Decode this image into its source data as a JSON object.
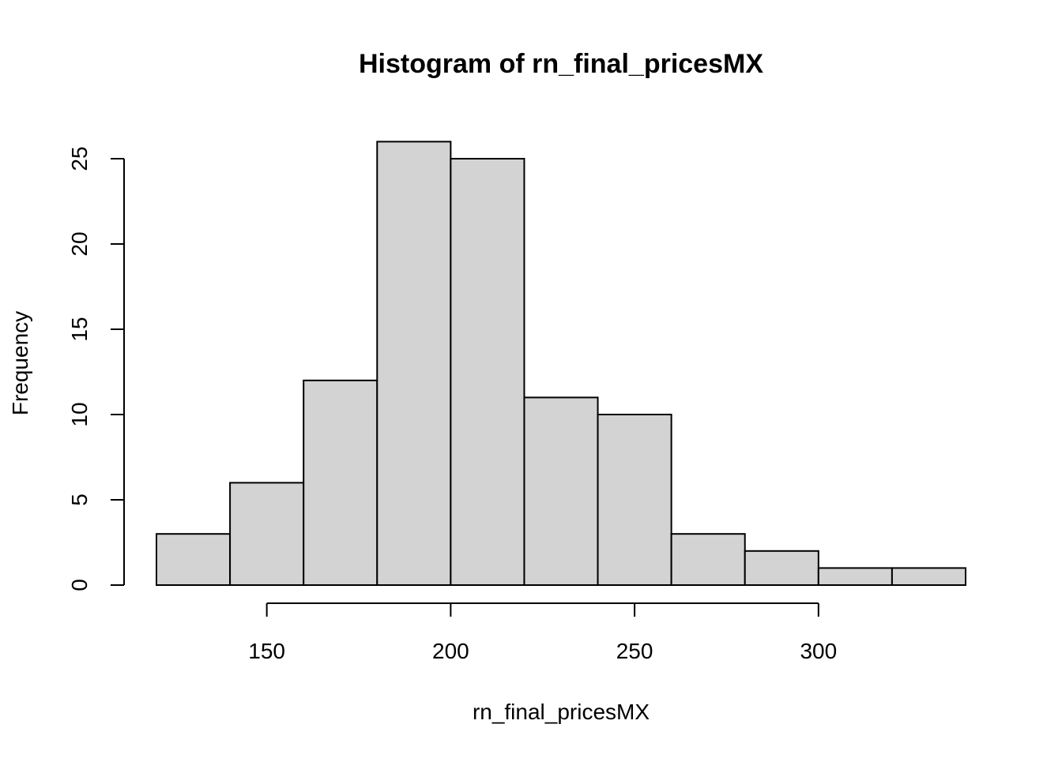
{
  "chart_data": {
    "type": "bar",
    "title": "Histogram of rn_final_pricesMX",
    "xlabel": "rn_final_pricesMX",
    "ylabel": "Frequency",
    "bins": [
      {
        "start": 120,
        "end": 140,
        "count": 3
      },
      {
        "start": 140,
        "end": 160,
        "count": 6
      },
      {
        "start": 160,
        "end": 180,
        "count": 12
      },
      {
        "start": 180,
        "end": 200,
        "count": 26
      },
      {
        "start": 200,
        "end": 220,
        "count": 25
      },
      {
        "start": 220,
        "end": 240,
        "count": 11
      },
      {
        "start": 240,
        "end": 260,
        "count": 10
      },
      {
        "start": 260,
        "end": 280,
        "count": 3
      },
      {
        "start": 280,
        "end": 300,
        "count": 2
      },
      {
        "start": 300,
        "end": 320,
        "count": 1
      },
      {
        "start": 320,
        "end": 340,
        "count": 1
      }
    ],
    "x_ticks": [
      150,
      200,
      250,
      300
    ],
    "y_ticks": [
      0,
      5,
      10,
      15,
      20,
      25
    ],
    "xlim": [
      120,
      340
    ],
    "ylim": [
      0,
      26
    ],
    "bar_color": "#d3d3d3",
    "edge_color": "#000000",
    "grid": false,
    "legend": "none"
  }
}
